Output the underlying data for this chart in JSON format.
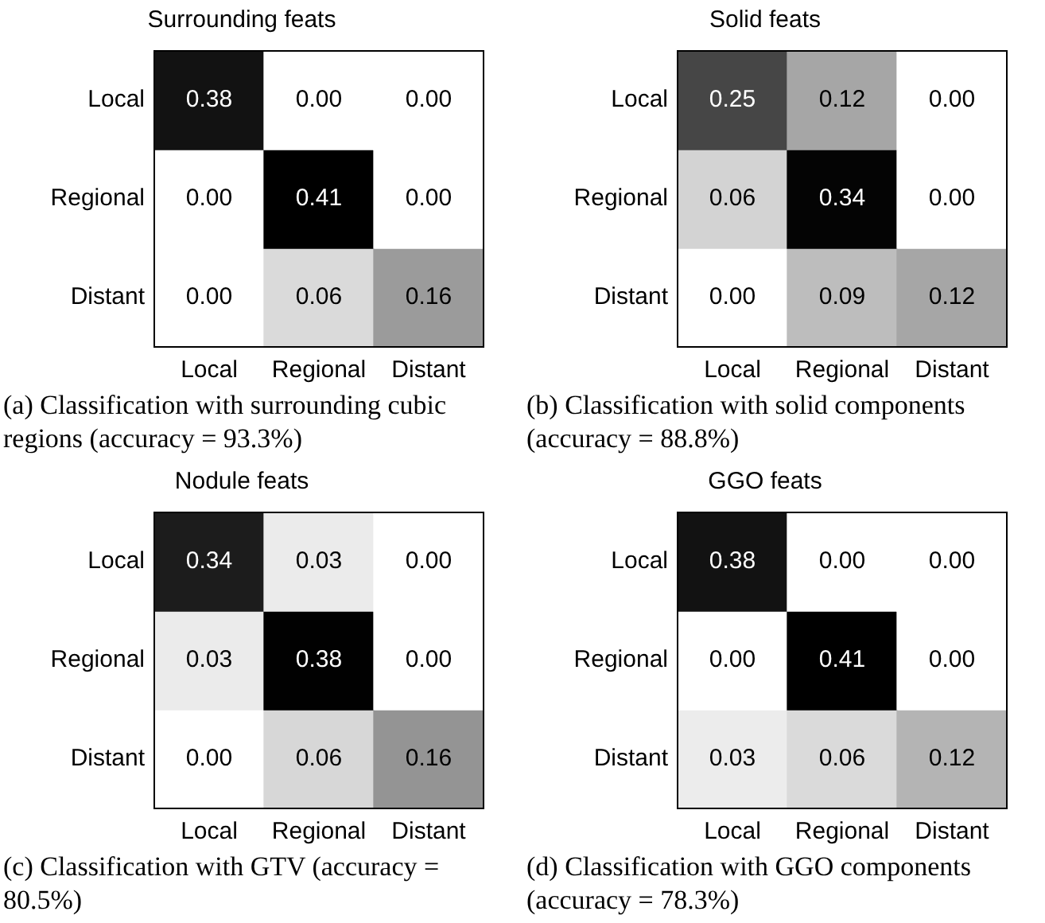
{
  "chart_data": [
    {
      "type": "heatmap",
      "title": "Surrounding feats",
      "categories": [
        "Local",
        "Regional",
        "Distant"
      ],
      "y_categories": [
        "Local",
        "Regional",
        "Distant"
      ],
      "cells": [
        [
          0.38,
          0.0,
          0.0
        ],
        [
          0.0,
          0.41,
          0.0
        ],
        [
          0.0,
          0.06,
          0.16
        ]
      ],
      "cell_labels": [
        [
          "0.38",
          "0.00",
          "0.00"
        ],
        [
          "0.00",
          "0.41",
          "0.00"
        ],
        [
          "0.00",
          "0.06",
          "0.16"
        ]
      ],
      "annotations": [
        "(a) Classification with surrounding cubic regions (accuracy = 93.3%)"
      ]
    },
    {
      "type": "heatmap",
      "title": "Solid feats",
      "categories": [
        "Local",
        "Regional",
        "Distant"
      ],
      "y_categories": [
        "Local",
        "Regional",
        "Distant"
      ],
      "cells": [
        [
          0.25,
          0.12,
          0.0
        ],
        [
          0.06,
          0.34,
          0.0
        ],
        [
          0.0,
          0.09,
          0.12
        ]
      ],
      "cell_labels": [
        [
          "0.25",
          "0.12",
          "0.00"
        ],
        [
          "0.06",
          "0.34",
          "0.00"
        ],
        [
          "0.00",
          "0.09",
          "0.12"
        ]
      ],
      "annotations": [
        "(b) Classification with solid components (accuracy = 88.8%)"
      ]
    },
    {
      "type": "heatmap",
      "title": "Nodule feats",
      "categories": [
        "Local",
        "Regional",
        "Distant"
      ],
      "y_categories": [
        "Local",
        "Regional",
        "Distant"
      ],
      "cells": [
        [
          0.34,
          0.03,
          0.0
        ],
        [
          0.03,
          0.38,
          0.0
        ],
        [
          0.0,
          0.06,
          0.16
        ]
      ],
      "cell_labels": [
        [
          "0.34",
          "0.03",
          "0.00"
        ],
        [
          "0.03",
          "0.38",
          "0.00"
        ],
        [
          "0.00",
          "0.06",
          "0.16"
        ]
      ],
      "annotations": [
        "(c) Classification with GTV (accuracy = 80.5%)"
      ]
    },
    {
      "type": "heatmap",
      "title": "GGO feats",
      "categories": [
        "Local",
        "Regional",
        "Distant"
      ],
      "y_categories": [
        "Local",
        "Regional",
        "Distant"
      ],
      "cells": [
        [
          0.38,
          0.0,
          0.0
        ],
        [
          0.0,
          0.41,
          0.0
        ],
        [
          0.03,
          0.06,
          0.12
        ]
      ],
      "cell_labels": [
        [
          "0.38",
          "0.00",
          "0.00"
        ],
        [
          "0.00",
          "0.41",
          "0.00"
        ],
        [
          "0.03",
          "0.06",
          "0.12"
        ]
      ],
      "annotations": [
        "(d) Classification with GGO components (accuracy = 78.3%)"
      ]
    }
  ]
}
